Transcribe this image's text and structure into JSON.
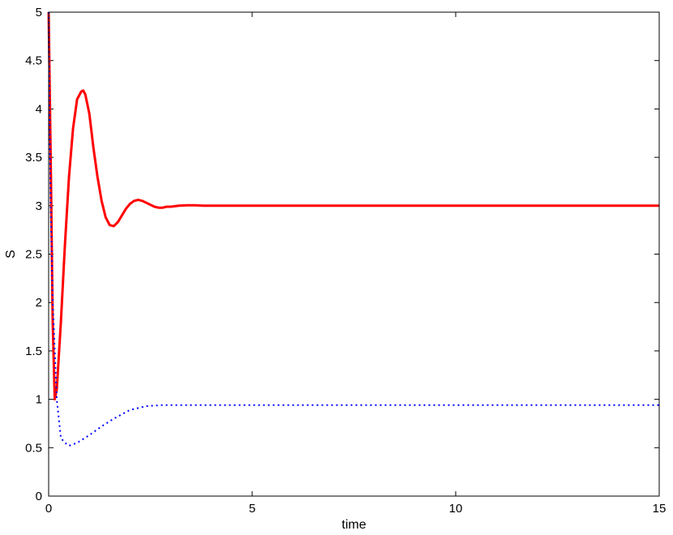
{
  "chart_data": {
    "type": "line",
    "title": "",
    "xlabel": "time",
    "ylabel": "S",
    "xlim": [
      0,
      15
    ],
    "ylim": [
      0,
      5
    ],
    "x_ticks": [
      "0",
      "5",
      "10",
      "15"
    ],
    "y_ticks": [
      "0",
      "0.5",
      "1",
      "1.5",
      "2",
      "2.5",
      "3",
      "3.5",
      "4",
      "4.5",
      "5"
    ],
    "grid": false,
    "legend": "none",
    "series": [
      {
        "style": "solid",
        "color": "#ff0000",
        "x": [
          0,
          0.05,
          0.1,
          0.15,
          0.2,
          0.3,
          0.4,
          0.5,
          0.6,
          0.7,
          0.8,
          0.85,
          0.9,
          1.0,
          1.1,
          1.2,
          1.3,
          1.4,
          1.5,
          1.6,
          1.7,
          1.8,
          1.9,
          2.0,
          2.1,
          2.2,
          2.3,
          2.4,
          2.5,
          2.6,
          2.7,
          2.8,
          2.9,
          3.0,
          3.2,
          3.4,
          3.6,
          3.8,
          4.0,
          4.5,
          5,
          6,
          8,
          10,
          12,
          15
        ],
        "y": [
          5.0,
          3.5,
          1.8,
          1.0,
          1.1,
          1.8,
          2.6,
          3.3,
          3.8,
          4.1,
          4.18,
          4.19,
          4.15,
          3.95,
          3.6,
          3.3,
          3.05,
          2.88,
          2.8,
          2.79,
          2.83,
          2.9,
          2.97,
          3.02,
          3.05,
          3.06,
          3.05,
          3.03,
          3.01,
          2.99,
          2.98,
          2.98,
          2.99,
          2.99,
          3.0,
          3.005,
          3.005,
          3.0,
          3.0,
          3.0,
          3.0,
          3.0,
          3.0,
          3.0,
          3.0,
          3.0
        ]
      },
      {
        "style": "dotted",
        "color": "#0000ff",
        "x": [
          0,
          0.02,
          0.05,
          0.1,
          0.15,
          0.2,
          0.3,
          0.4,
          0.5,
          0.7,
          1.0,
          1.3,
          1.6,
          2.0,
          2.4,
          2.8,
          3.2,
          3.6,
          4.0,
          5,
          6,
          8,
          10,
          12,
          14,
          15
        ],
        "y": [
          5.0,
          4.0,
          3.0,
          2.0,
          1.5,
          1.0,
          0.6,
          0.55,
          0.52,
          0.55,
          0.63,
          0.72,
          0.8,
          0.89,
          0.93,
          0.94,
          0.94,
          0.94,
          0.94,
          0.94,
          0.94,
          0.94,
          0.94,
          0.94,
          0.94,
          0.94
        ]
      }
    ]
  }
}
